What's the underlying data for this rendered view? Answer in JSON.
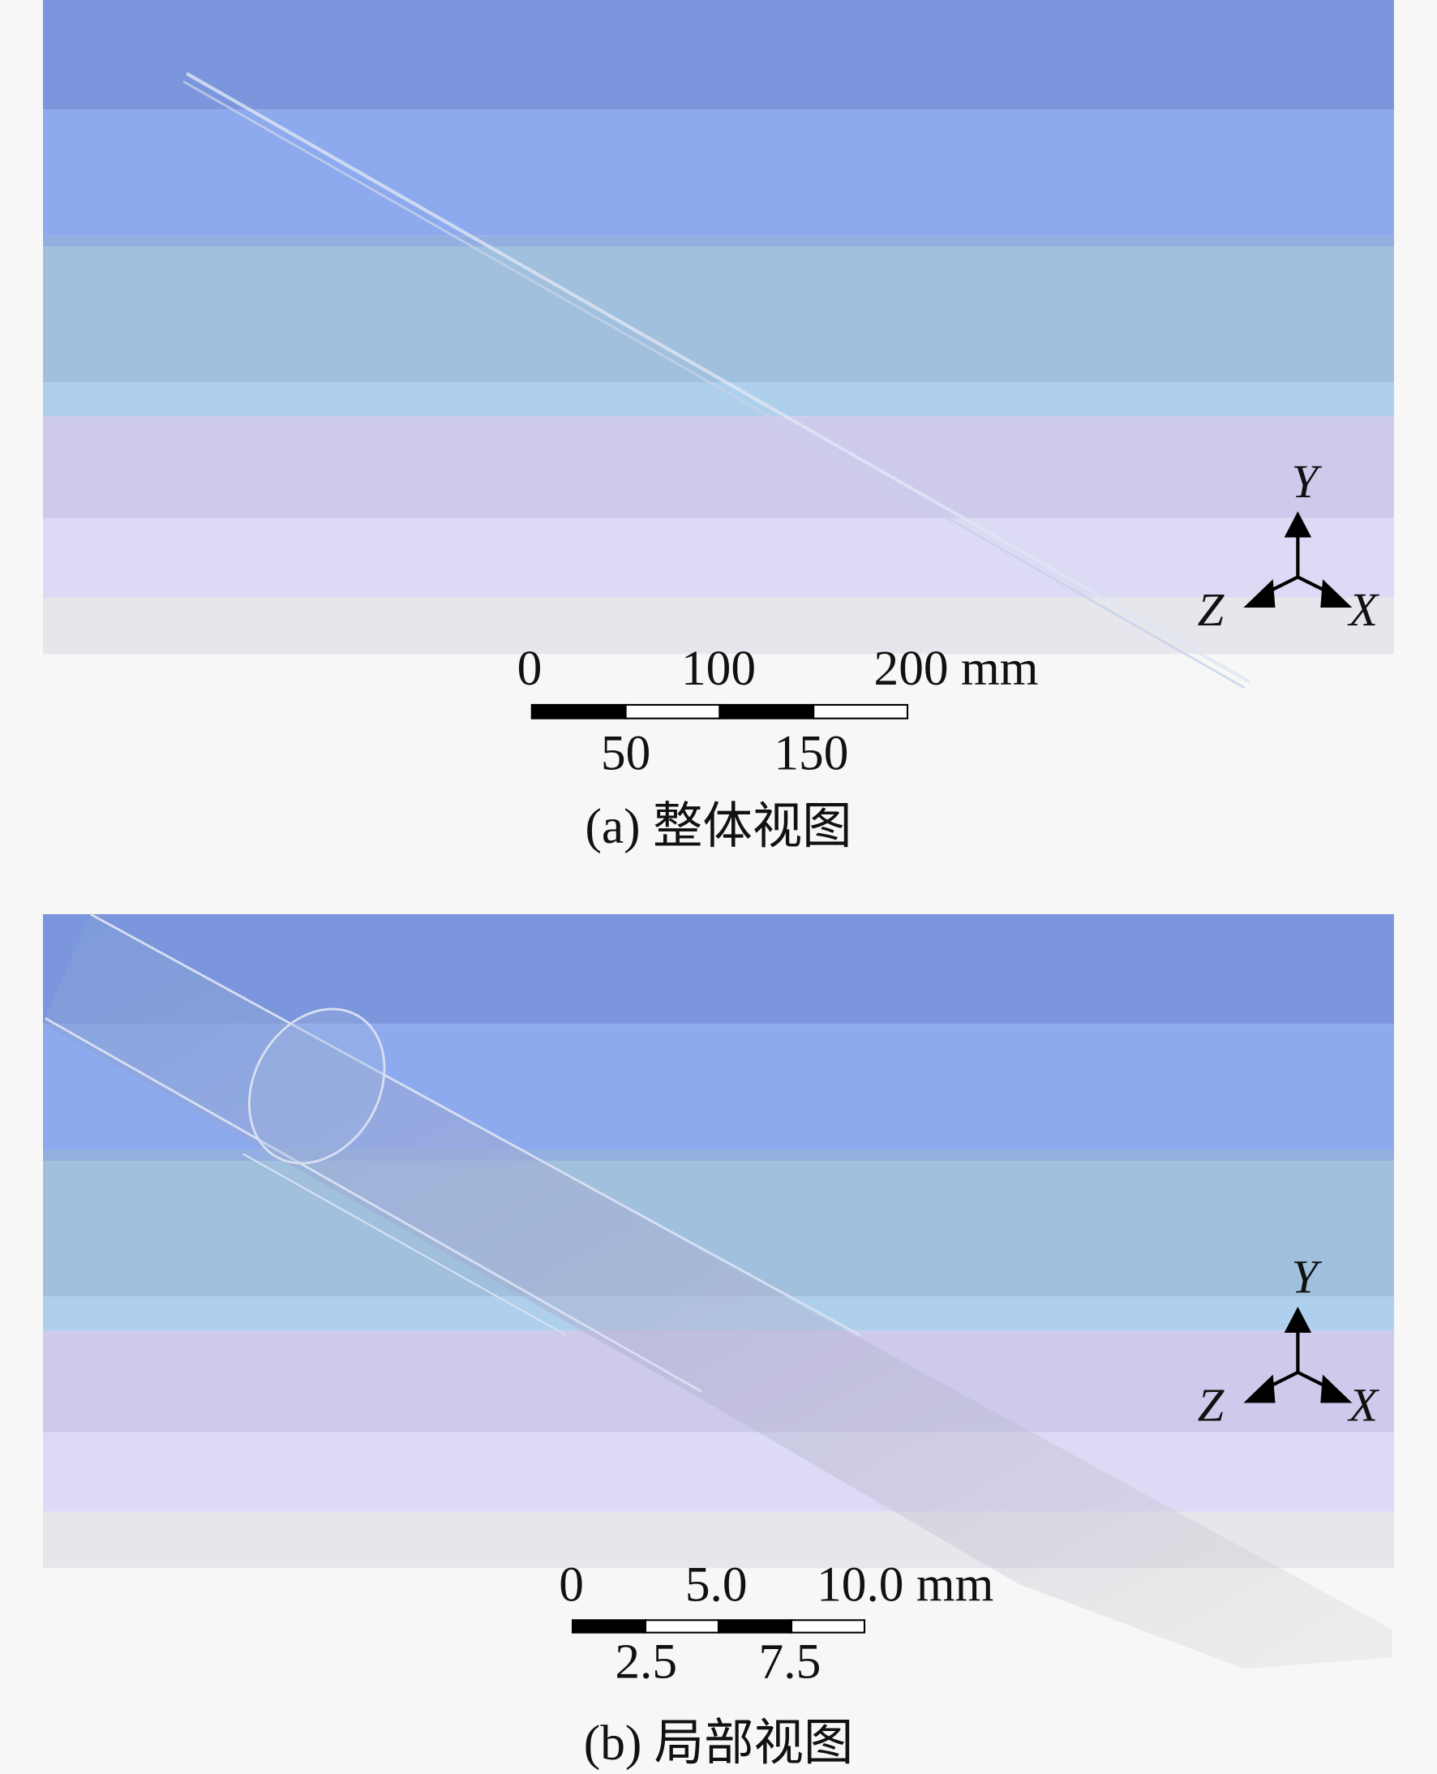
{
  "panels": [
    {
      "axes": {
        "y": "Y",
        "z": "Z",
        "x": "X"
      },
      "scale_bar": {
        "top_labels": [
          "0",
          "100",
          "200 mm"
        ],
        "bottom_labels": [
          "50",
          "150"
        ]
      },
      "caption": "(a) 整体视图"
    },
    {
      "axes": {
        "y": "Y",
        "z": "Z",
        "x": "X"
      },
      "scale_bar": {
        "top_labels": [
          "0",
          "5.0",
          "10.0 mm"
        ],
        "bottom_labels": [
          "2.5",
          "7.5"
        ]
      },
      "caption": "(b) 局部视图"
    }
  ]
}
